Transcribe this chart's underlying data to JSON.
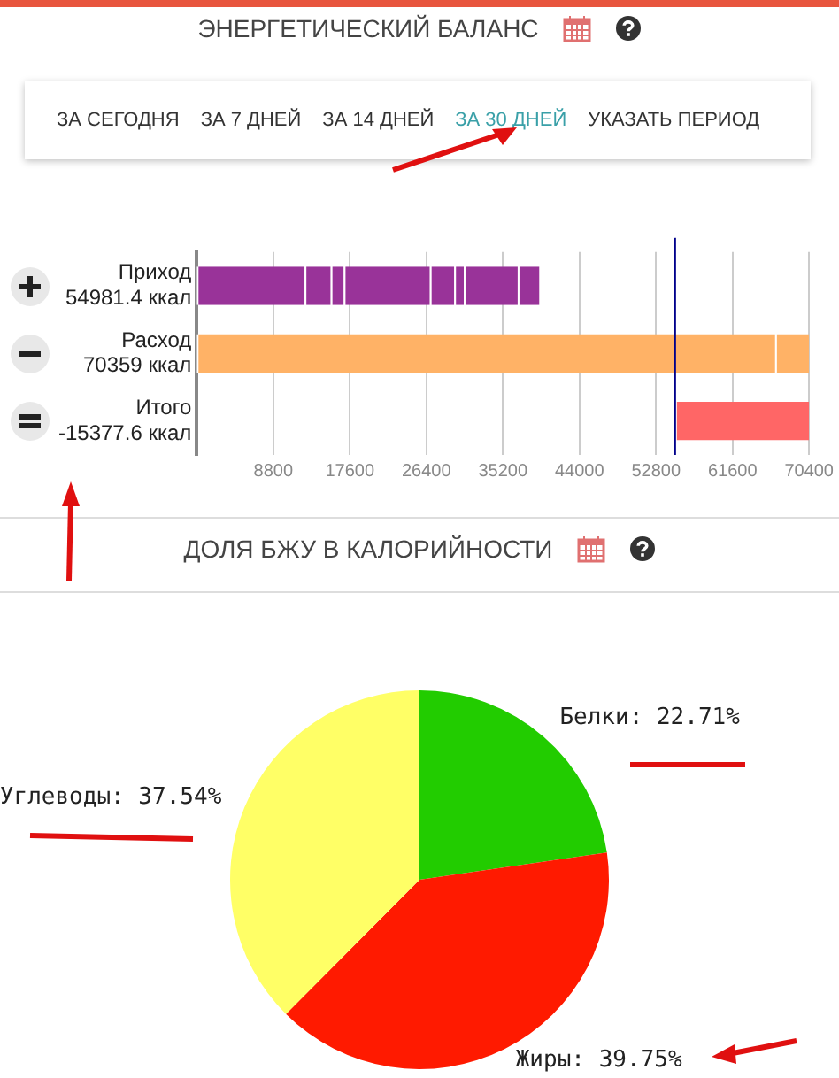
{
  "chart_data": [
    {
      "type": "bar",
      "orientation": "horizontal",
      "stacked": true,
      "title": "ЭНЕРГЕТИЧЕСКИЙ БАЛАНС",
      "annotations": [
        "ЗА СЕГОДНЯ",
        "ЗА 7 ДНЕЙ",
        "ЗА 14 ДНЕЙ",
        "ЗА 30 ДНЕЙ",
        "УКАЗАТЬ ПЕРИОД"
      ],
      "categories": [
        "Приход\n54981.4 ккал",
        "Расход\n70359 ккал",
        "Итого\n-15377.6 ккал"
      ],
      "series": [
        {
          "color": "#993399",
          "values": [
            12400,
            null,
            null
          ]
        },
        {
          "color": "#993399",
          "values": [
            3000,
            null,
            null
          ]
        },
        {
          "color": "#993399",
          "values": [
            1500,
            null,
            null
          ]
        },
        {
          "color": "#993399",
          "values": [
            9900,
            null,
            null
          ]
        },
        {
          "color": "#993399",
          "values": [
            2800,
            null,
            null
          ]
        },
        {
          "color": "#993399",
          "values": [
            1100,
            null,
            null
          ]
        },
        {
          "color": "#993399",
          "values": [
            6200,
            null,
            null
          ]
        },
        {
          "color": "#993399",
          "values": [
            2500,
            null,
            null
          ]
        },
        {
          "color": "#ffb266",
          "values": [
            null,
            66500,
            null
          ]
        },
        {
          "color": "#ffb266",
          "values": [
            null,
            3900,
            null
          ]
        },
        {
          "color": "#ff6666",
          "values": [
            null,
            null,
            15400
          ],
          "base": [
            null,
            null,
            55000
          ]
        }
      ],
      "xlim": [
        0,
        70400
      ],
      "xticks": [
        8800,
        17600,
        26400,
        35200,
        44000,
        52800,
        61600,
        70400
      ],
      "ref_lines": [
        {
          "axis": "x",
          "value": 55000,
          "color": "#00008b"
        }
      ],
      "grid": "x"
    },
    {
      "type": "pie",
      "title": "ДОЛЯ БЖУ В КАЛОРИЙНОСТИ",
      "categories": [
        "Белки",
        "Жиры",
        "Углеводы"
      ],
      "values": [
        22.71,
        39.75,
        37.54
      ],
      "colors": [
        "#22cc00",
        "#ff1a00",
        "#ffff66"
      ],
      "value_labels": [
        "22.71%",
        "39.75%",
        "37.54%"
      ]
    }
  ]
}
